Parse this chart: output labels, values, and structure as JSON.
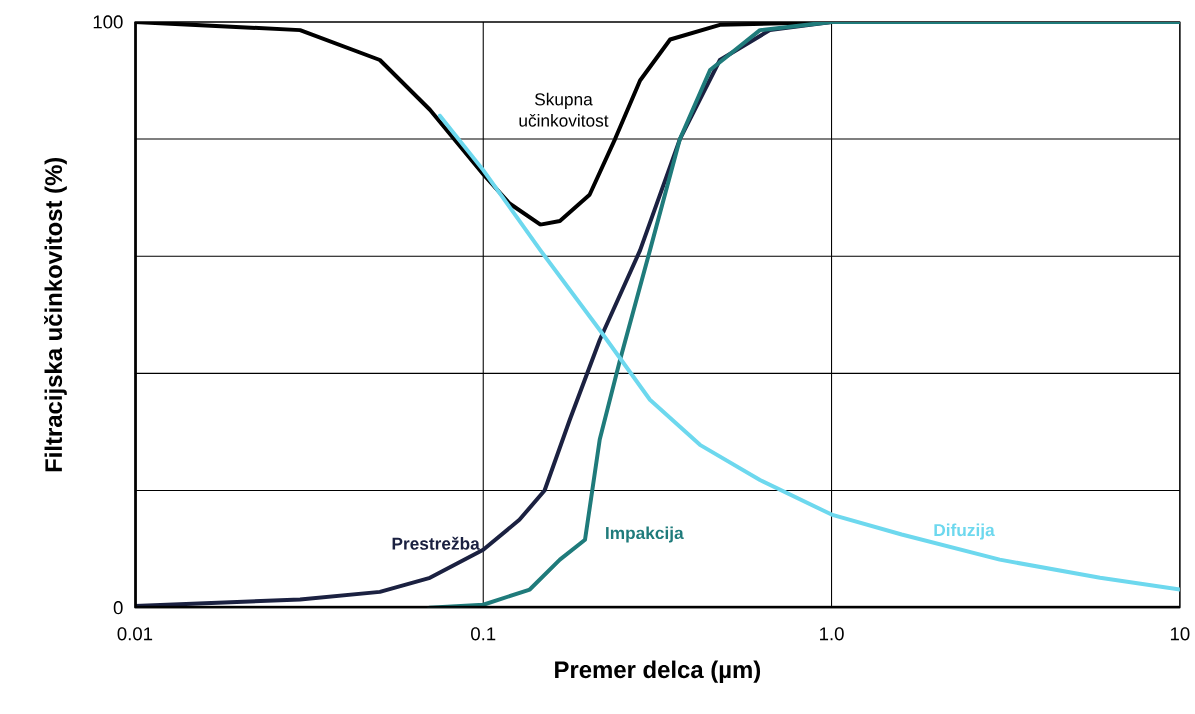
{
  "chart_data": {
    "type": "line",
    "xlabel": "Premer delca (µm)",
    "ylabel": "Filtracijska učinkovitost (%)",
    "log": "x",
    "grid": true,
    "xlim": [
      0.01,
      10
    ],
    "ylim": [
      0,
      100
    ],
    "xticks": [
      0.01,
      0.1,
      {
        "value": 1,
        "label": "1.0"
      },
      10
    ],
    "yticks": [
      0,
      {
        "value": 20,
        "label": null
      },
      {
        "value": 40,
        "label": null
      },
      {
        "value": 60,
        "label": null
      },
      {
        "value": 80,
        "label": null
      },
      100
    ],
    "series": [
      {
        "name": "Skupna učinkovitost",
        "color": "#000000",
        "x": [
          0.01,
          0.0298,
          0.0505,
          0.0703,
          0.1,
          0.119,
          0.146,
          0.166,
          0.202,
          0.239,
          0.282,
          0.344,
          0.478,
          1.0,
          10
        ],
        "values": [
          100,
          98.6,
          93.5,
          85,
          74,
          69,
          65.4,
          66,
          70.5,
          80,
          90,
          97,
          99.5,
          100,
          100
        ]
      },
      {
        "name": "Prestrežba",
        "color": "#1b2141",
        "x": [
          0.01,
          0.0298,
          0.0505,
          0.0703,
          0.1,
          0.127,
          0.15,
          0.177,
          0.216,
          0.282,
          0.367,
          0.478,
          0.665,
          1.0,
          10
        ],
        "values": [
          0.3,
          1.4,
          2.7,
          5.1,
          9.9,
          15,
          20,
          32,
          45.7,
          61,
          80,
          93.5,
          98.6,
          100,
          100
        ]
      },
      {
        "name": "Impakcija",
        "color": "#1f7b7b",
        "x": [
          0.07,
          0.1,
          0.136,
          0.166,
          0.196,
          0.216,
          0.247,
          0.301,
          0.367,
          0.448,
          0.623,
          1.0,
          10
        ],
        "values": [
          0,
          0.5,
          3.1,
          8.2,
          11.6,
          28.7,
          42.3,
          61,
          80,
          91.8,
          98.6,
          100,
          100
        ]
      },
      {
        "name": "Difuzija",
        "color": "#6dd8ee",
        "x": [
          0.0751,
          0.1,
          0.146,
          0.216,
          0.301,
          0.419,
          0.623,
          1.0,
          1.59,
          3.04,
          5.9,
          10
        ],
        "values": [
          84,
          74.7,
          61,
          47.4,
          35.5,
          27.8,
          21.8,
          15.9,
          12.5,
          8.2,
          5.1,
          3.1
        ]
      }
    ]
  }
}
